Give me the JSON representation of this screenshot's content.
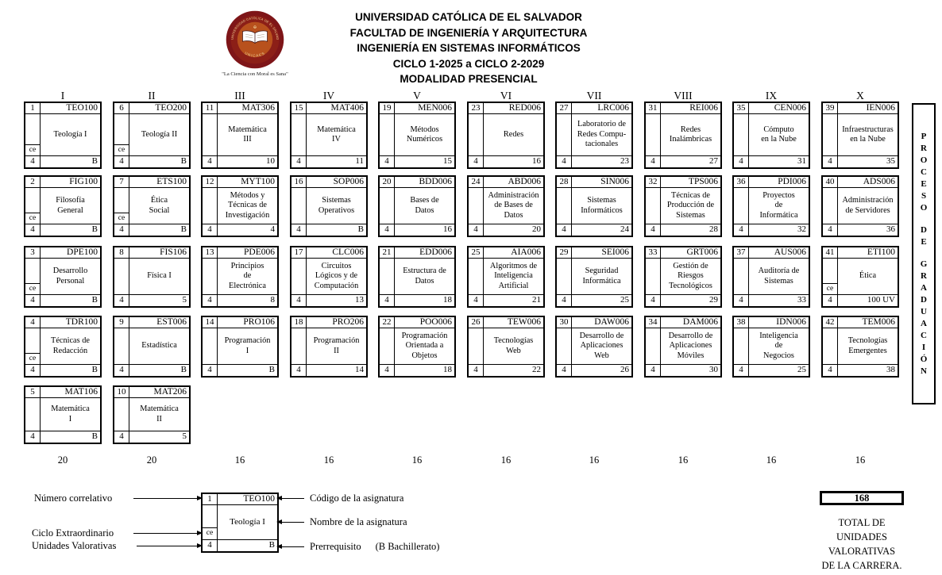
{
  "header": {
    "lines": [
      "UNIVERSIDAD CATÓLICA DE EL SALVADOR",
      "FACULTAD DE INGENIERÍA Y ARQUITECTURA",
      "INGENIERÍA EN SISTEMAS INFORMÁTICOS",
      "CICLO 1-2025 a CICLO 2-2029",
      "MODALIDAD PRESENCIAL"
    ],
    "logo_motto": "\"La Ciencia con Moral es Sana\"",
    "logo_ring_top": "UNIVERSIDAD CATOLICA DE EL SALVADOR",
    "logo_ring_bottom": "UNICAES"
  },
  "labels": {
    "ce": "ce"
  },
  "proceso_strip": {
    "letters": [
      "P",
      "R",
      "O",
      "C",
      "E",
      "S",
      "O",
      "",
      "D",
      "E",
      "",
      "G",
      "R",
      "A",
      "D",
      "U",
      "A",
      "C",
      "I",
      "Ó",
      "N"
    ]
  },
  "cycles": [
    {
      "numeral": "I",
      "total": "20",
      "courses": [
        {
          "n": "1",
          "code": "TEO100",
          "name": "Teología I",
          "ce": true,
          "uv": "4",
          "prereq": "B"
        },
        {
          "n": "2",
          "code": "FIG100",
          "name": "Filosofía\nGeneral",
          "ce": true,
          "uv": "4",
          "prereq": "B"
        },
        {
          "n": "3",
          "code": "DPE100",
          "name": "Desarrollo\nPersonal",
          "ce": true,
          "uv": "4",
          "prereq": "B"
        },
        {
          "n": "4",
          "code": "TDR100",
          "name": "Técnicas de\nRedacción",
          "ce": true,
          "uv": "4",
          "prereq": "B"
        },
        {
          "n": "5",
          "code": "MAT106",
          "name": "Matemática\nI",
          "ce": false,
          "uv": "4",
          "prereq": "B"
        }
      ]
    },
    {
      "numeral": "II",
      "total": "20",
      "courses": [
        {
          "n": "6",
          "code": "TEO200",
          "name": "Teología II",
          "ce": true,
          "uv": "4",
          "prereq": "B"
        },
        {
          "n": "7",
          "code": "ETS100",
          "name": "Ética\nSocial",
          "ce": true,
          "uv": "4",
          "prereq": "B"
        },
        {
          "n": "8",
          "code": "FIS106",
          "name": "Física I",
          "ce": false,
          "uv": "4",
          "prereq": "5"
        },
        {
          "n": "9",
          "code": "EST006",
          "name": "Estadística",
          "ce": false,
          "uv": "4",
          "prereq": "B"
        },
        {
          "n": "10",
          "code": "MAT206",
          "name": "Matemática\nII",
          "ce": false,
          "uv": "4",
          "prereq": "5"
        }
      ]
    },
    {
      "numeral": "III",
      "total": "16",
      "courses": [
        {
          "n": "11",
          "code": "MAT306",
          "name": "Matemática\nIII",
          "ce": false,
          "uv": "4",
          "prereq": "10"
        },
        {
          "n": "12",
          "code": "MYT100",
          "name": "Métodos y\nTécnicas de\nInvestigación",
          "ce": false,
          "uv": "4",
          "prereq": "4"
        },
        {
          "n": "13",
          "code": "PDE006",
          "name": "Principios\nde\nElectrónica",
          "ce": false,
          "uv": "4",
          "prereq": "8"
        },
        {
          "n": "14",
          "code": "PRO106",
          "name": "Programación\nI",
          "ce": false,
          "uv": "4",
          "prereq": "B"
        }
      ]
    },
    {
      "numeral": "IV",
      "total": "16",
      "courses": [
        {
          "n": "15",
          "code": "MAT406",
          "name": "Matemática\nIV",
          "ce": false,
          "uv": "4",
          "prereq": "11"
        },
        {
          "n": "16",
          "code": "SOP006",
          "name": "Sistemas\nOperativos",
          "ce": false,
          "uv": "4",
          "prereq": "B"
        },
        {
          "n": "17",
          "code": "CLC006",
          "name": "Circuitos\nLógicos y de\nComputación",
          "ce": false,
          "uv": "4",
          "prereq": "13"
        },
        {
          "n": "18",
          "code": "PRO206",
          "name": "Programación\nII",
          "ce": false,
          "uv": "4",
          "prereq": "14"
        }
      ]
    },
    {
      "numeral": "V",
      "total": "16",
      "courses": [
        {
          "n": "19",
          "code": "MEN006",
          "name": "Métodos\nNuméricos",
          "ce": false,
          "uv": "4",
          "prereq": "15"
        },
        {
          "n": "20",
          "code": "BDD006",
          "name": "Bases de\nDatos",
          "ce": false,
          "uv": "4",
          "prereq": "16"
        },
        {
          "n": "21",
          "code": "EDD006",
          "name": "Estructura de\nDatos",
          "ce": false,
          "uv": "4",
          "prereq": "18"
        },
        {
          "n": "22",
          "code": "POO006",
          "name": "Programación\nOrientada a\nObjetos",
          "ce": false,
          "uv": "4",
          "prereq": "18"
        }
      ]
    },
    {
      "numeral": "VI",
      "total": "16",
      "courses": [
        {
          "n": "23",
          "code": "RED006",
          "name": "Redes",
          "ce": false,
          "uv": "4",
          "prereq": "16"
        },
        {
          "n": "24",
          "code": "ABD006",
          "name": "Administración\nde Bases de\nDatos",
          "ce": false,
          "uv": "4",
          "prereq": "20"
        },
        {
          "n": "25",
          "code": "AIA006",
          "name": "Algoritmos de\nInteligencia\nArtificial",
          "ce": false,
          "uv": "4",
          "prereq": "21"
        },
        {
          "n": "26",
          "code": "TEW006",
          "name": "Tecnologías\nWeb",
          "ce": false,
          "uv": "4",
          "prereq": "22"
        }
      ]
    },
    {
      "numeral": "VII",
      "total": "16",
      "courses": [
        {
          "n": "27",
          "code": "LRC006",
          "name": "Laboratorio de\nRedes Compu-\ntacionales",
          "ce": false,
          "uv": "4",
          "prereq": "23"
        },
        {
          "n": "28",
          "code": "SIN006",
          "name": "Sistemas\nInformáticos",
          "ce": false,
          "uv": "4",
          "prereq": "24"
        },
        {
          "n": "29",
          "code": "SEI006",
          "name": "Seguridad\nInformática",
          "ce": false,
          "uv": "4",
          "prereq": "25"
        },
        {
          "n": "30",
          "code": "DAW006",
          "name": "Desarrollo de\nAplicaciones\nWeb",
          "ce": false,
          "uv": "4",
          "prereq": "26"
        }
      ]
    },
    {
      "numeral": "VIII",
      "total": "16",
      "courses": [
        {
          "n": "31",
          "code": "REI006",
          "name": "Redes\nInalámbricas",
          "ce": false,
          "uv": "4",
          "prereq": "27"
        },
        {
          "n": "32",
          "code": "TPS006",
          "name": "Técnicas de\nProducción de\nSistemas",
          "ce": false,
          "uv": "4",
          "prereq": "28"
        },
        {
          "n": "33",
          "code": "GRT006",
          "name": "Gestión de\nRiesgos\nTecnológicos",
          "ce": false,
          "uv": "4",
          "prereq": "29"
        },
        {
          "n": "34",
          "code": "DAM006",
          "name": "Desarrollo de\nAplicaciones\nMóviles",
          "ce": false,
          "uv": "4",
          "prereq": "30"
        }
      ]
    },
    {
      "numeral": "IX",
      "total": "16",
      "courses": [
        {
          "n": "35",
          "code": "CEN006",
          "name": "Cómputo\nen la Nube",
          "ce": false,
          "uv": "4",
          "prereq": "31"
        },
        {
          "n": "36",
          "code": "PDI006",
          "name": "Proyectos\nde\nInformática",
          "ce": false,
          "uv": "4",
          "prereq": "32"
        },
        {
          "n": "37",
          "code": "AUS006",
          "name": "Auditoría de\nSistemas",
          "ce": false,
          "uv": "4",
          "prereq": "33"
        },
        {
          "n": "38",
          "code": "IDN006",
          "name": "Inteligencia\nde\nNegocios",
          "ce": false,
          "uv": "4",
          "prereq": "25"
        }
      ]
    },
    {
      "numeral": "X",
      "total": "16",
      "courses": [
        {
          "n": "39",
          "code": "IEN006",
          "name": "Infraestructuras\nen la Nube",
          "ce": false,
          "uv": "4",
          "prereq": "35"
        },
        {
          "n": "40",
          "code": "ADS006",
          "name": "Administración\nde Servidores",
          "ce": false,
          "uv": "4",
          "prereq": "36"
        },
        {
          "n": "41",
          "code": "ETI100",
          "name": "Ética",
          "ce": true,
          "uv": "4",
          "prereq": "100 UV"
        },
        {
          "n": "42",
          "code": "TEM006",
          "name": "Tecnologías\nEmergentes",
          "ce": false,
          "uv": "4",
          "prereq": "38"
        }
      ]
    }
  ],
  "legend": {
    "number_label": "Número correlativo",
    "ce_label": "Ciclo Extraordinario",
    "uv_label": "Unidades Valorativas",
    "code_label": "Código de la asignatura",
    "name_label": "Nombre de la asignatura",
    "prereq_label": "Prerrequisito",
    "prereq_note": "(B Bachillerato)",
    "sample": {
      "n": "1",
      "code": "TEO100",
      "name": "Teología I",
      "uv": "4",
      "prereq": "B"
    }
  },
  "summary": {
    "total_uv": "168",
    "caption": "TOTAL DE\nUNIDADES\nVALORATIVAS\nDE LA CARRERA."
  }
}
